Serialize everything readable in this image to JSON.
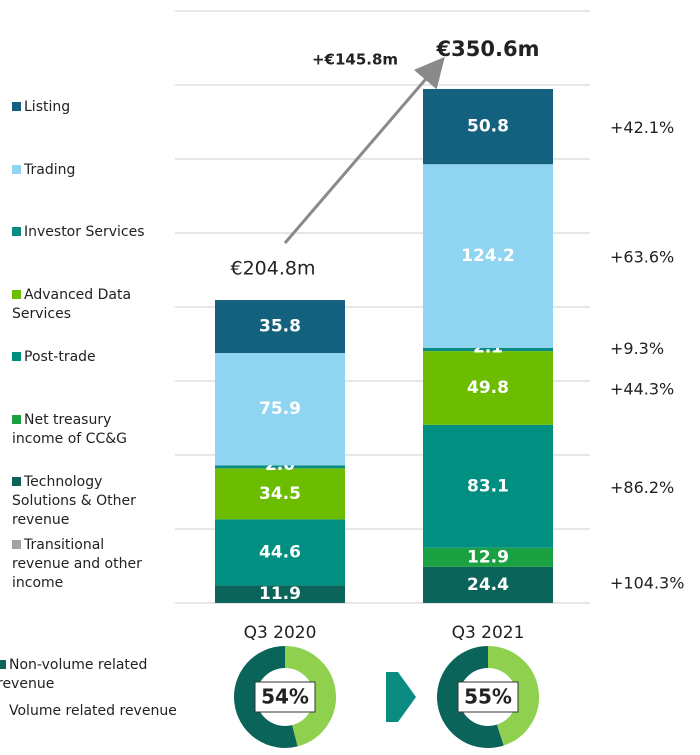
{
  "chart_data": [
    {
      "type": "bar",
      "stacked": true,
      "categories": [
        "Q3 2020",
        "Q3 2021"
      ],
      "series": [
        {
          "name": "Listing",
          "color": "#14607f",
          "values": [
            35.8,
            50.8
          ],
          "growth": "+42.1%"
        },
        {
          "name": "Trading",
          "color": "#8fd4f0",
          "values": [
            75.9,
            124.2
          ],
          "growth": "+63.6%"
        },
        {
          "name": "Investor Services",
          "color": "#0a8c82",
          "values": [
            2.0,
            2.1
          ],
          "value_labels": [
            "2.0",
            "2.1"
          ],
          "growth": "+9.3%"
        },
        {
          "name": "Advanced Data Services",
          "color": "#6cbc00",
          "values": [
            34.5,
            49.8
          ],
          "growth": "+44.3%"
        },
        {
          "name": "Post-trade",
          "color": "#008f80",
          "values": [
            44.6,
            83.1
          ],
          "growth": "+86.2%"
        },
        {
          "name": "Net treasury income of CC&G",
          "color": "#1ba042",
          "values": [
            null,
            12.9
          ]
        },
        {
          "name": "Technology Solutions & Other revenue",
          "color": "#0b6459",
          "values": [
            11.9,
            24.4
          ],
          "growth": "+104.3%"
        },
        {
          "name": "Transitional revenue and other income",
          "color": "#a3a3a3",
          "values": [
            null,
            null
          ]
        }
      ],
      "totals": [
        "€204.8m",
        "€350.6m"
      ],
      "change": "+€145.8m",
      "ylim": [
        0,
        400
      ],
      "grid_lines": [
        0,
        50,
        100,
        150,
        200,
        250,
        300,
        350,
        400
      ],
      "grid": true
    },
    {
      "type": "donut",
      "categories": [
        "Q3 2020",
        "Q3 2021"
      ],
      "series": [
        {
          "name": "Non-volume related revenue",
          "color": "#0b6459",
          "values": [
            54,
            55
          ],
          "value_labels": [
            "54%",
            "55%"
          ]
        },
        {
          "name": "Volume related revenue",
          "color": "#8fd14f",
          "values": [
            46,
            45
          ]
        }
      ]
    }
  ]
}
